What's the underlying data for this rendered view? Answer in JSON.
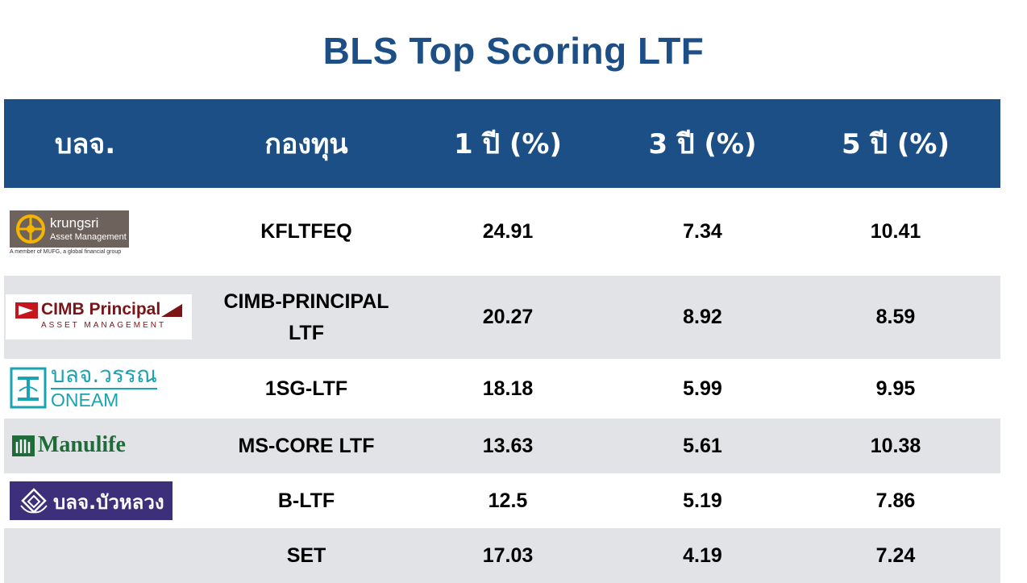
{
  "title": "BLS Top Scoring LTF",
  "columns": [
    "บลจ.",
    "กองทุน",
    "1 ปี (%)",
    "3 ปี (%)",
    "5 ปี (%)"
  ],
  "rows": [
    {
      "company": "krungsri Asset Management",
      "fund": "KFLTFEQ",
      "y1": "24.91",
      "y3": "7.34",
      "y5": "10.41"
    },
    {
      "company": "CIMB Principal Asset Management",
      "fund": "CIMB-PRINCIPAL LTF",
      "y1": "20.27",
      "y3": "8.92",
      "y5": "8.59"
    },
    {
      "company": "บลจ.วรรณ ONEAM",
      "fund": "1SG-LTF",
      "y1": "18.18",
      "y3": "5.99",
      "y5": "9.95"
    },
    {
      "company": "Manulife",
      "fund": "MS-CORE LTF",
      "y1": "13.63",
      "y3": "5.61",
      "y5": "10.38"
    },
    {
      "company": "บลจ.บัวหลวง",
      "fund": "B-LTF",
      "y1": "12.5",
      "y3": "5.19",
      "y5": "7.86"
    },
    {
      "company": "",
      "fund": "SET",
      "y1": "17.03",
      "y3": "4.19",
      "y5": "7.24"
    }
  ],
  "logos": {
    "krungsri": {
      "name": "krungsri",
      "sub": "Asset Management",
      "tagline": "A member of MUFG, a global financial group",
      "bg": "#6e625d",
      "accent": "#f5b400"
    },
    "cimb": {
      "name": "CIMB Principal",
      "sub": "ASSET MANAGEMENT",
      "color": "#7b1416"
    },
    "oneam": {
      "thai": "บลจ.วรรณ",
      "latin": "ONEAM",
      "color": "#1aa3b4"
    },
    "manulife": {
      "name": "Manulife",
      "color": "#1f6b3a"
    },
    "bualuang": {
      "thai": "บลจ.บัวหลวง",
      "bg": "#3e2f7a"
    }
  },
  "colors": {
    "header_bg": "#1c4f86",
    "title": "#1d4f86",
    "row_alt": "#e2e3e6"
  }
}
